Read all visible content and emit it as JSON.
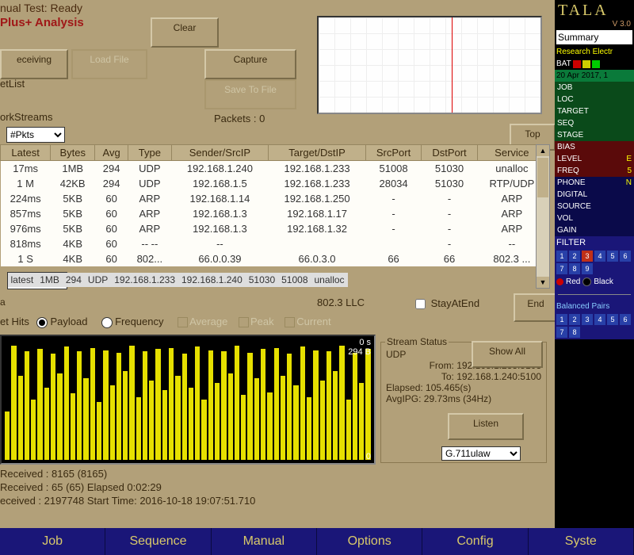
{
  "header": {
    "test_status": "nual Test: Ready",
    "analysis": "Plus+ Analysis"
  },
  "buttons": {
    "clear": "Clear",
    "receiving": "eceiving",
    "load": "Load File",
    "capture": "Capture",
    "save": "Save To File",
    "top": "Top",
    "end": "End",
    "showall": "Show All",
    "listen": "Listen"
  },
  "labels": {
    "etlist": "etList",
    "workstreams": "orkStreams",
    "packets": "Packets : 0",
    "llc": "802.3 LLC",
    "stayatend": "StayAtEnd",
    "ethits": "et Hits",
    "payload": "Payload",
    "frequency": "Frequency",
    "average": "Average",
    "peak": "Peak",
    "current": "Current"
  },
  "dropdown": {
    "pkts": "#Pkts",
    "codec": "G.711ulaw"
  },
  "table": {
    "cols": [
      "Latest",
      "Bytes",
      "Avg",
      "Type",
      "Sender/SrcIP",
      "Target/DstIP",
      "SrcPort",
      "DstPort",
      "Service"
    ],
    "rows": [
      [
        "latest",
        "1MB",
        "294",
        "UDP",
        "192.168.1.233",
        "192.168.1.240",
        "51030",
        "51008",
        "unalloc"
      ],
      [
        "17ms",
        "1MB",
        "294",
        "UDP",
        "192.168.1.240",
        "192.168.1.233",
        "51008",
        "51030",
        "unalloc"
      ],
      [
        "1 M",
        "42KB",
        "294",
        "UDP",
        "192.168.1.5",
        "192.168.1.233",
        "28034",
        "51030",
        "RTP/UDP"
      ],
      [
        "224ms",
        "5KB",
        "60",
        "ARP",
        "192.168.1.14",
        "192.168.1.250",
        "-",
        "-",
        "ARP"
      ],
      [
        "857ms",
        "5KB",
        "60",
        "ARP",
        "192.168.1.3",
        "192.168.1.17",
        "-",
        "-",
        "ARP"
      ],
      [
        "976ms",
        "5KB",
        "60",
        "ARP",
        "192.168.1.3",
        "192.168.1.32",
        "-",
        "-",
        "ARP"
      ],
      [
        "818ms",
        "4KB",
        "60",
        "-- --",
        "--",
        "",
        "",
        "-",
        "--"
      ],
      [
        "1 S",
        "4KB",
        "60",
        "802...",
        "66.0.0.39",
        "66.0.3.0",
        "66",
        "66",
        "802.3 ..."
      ]
    ]
  },
  "barchart": {
    "top_label": "0 s",
    "y_top": "294 B",
    "y_bot": "0",
    "heights": [
      40,
      95,
      70,
      90,
      50,
      92,
      60,
      88,
      72,
      94,
      55,
      90,
      68,
      93,
      48,
      91,
      62,
      89,
      74,
      95,
      52,
      90,
      66,
      92,
      58,
      93,
      70,
      88,
      60,
      94,
      50,
      91,
      64,
      90,
      72,
      95,
      54,
      89,
      68,
      92,
      56,
      93,
      70,
      88,
      62,
      94,
      52,
      91,
      66,
      90,
      74,
      95,
      50,
      89,
      64,
      92
    ]
  },
  "stream": {
    "title": "Stream Status",
    "proto": "UDP",
    "from": "From: 192.168.1.233:5103",
    "to": "To: 192.168.1.240:5100",
    "elapsed": "Elapsed: 105.465(s)",
    "avgipg": "AvgIPG: 29.73ms (34Hz)"
  },
  "stats": {
    "l1": "Received  : 8165 (8165)",
    "l2": " Received  : 65 (65)         Elapsed         0:02:29",
    "l3": "eceived  : 2197748            Start Time:     2016-10-18 19:07:51.710"
  },
  "botnav": [
    "Job",
    "Sequence",
    "Manual",
    "Options",
    "Config",
    "Syste"
  ],
  "right": {
    "logo": "TALA",
    "ver": "V 3.0",
    "summary": "Summary",
    "research": "Research Electr",
    "bat": "BAT",
    "bat_colors": [
      "#c00",
      "#cc0",
      "#0c0"
    ],
    "date": "20 Apr 2017, 1",
    "green": [
      [
        "JOB",
        ""
      ],
      [
        "LOC",
        ""
      ],
      [
        "TARGET",
        ""
      ],
      [
        "SEQ",
        ""
      ],
      [
        "STAGE",
        ""
      ]
    ],
    "red": [
      [
        "BIAS",
        ""
      ],
      [
        "LEVEL",
        "E"
      ],
      [
        "FREQ",
        "5"
      ]
    ],
    "blue": [
      [
        "PHONE",
        "N"
      ],
      [
        "DIGITAL",
        ""
      ],
      [
        "SOURCE",
        ""
      ],
      [
        "VOL",
        ""
      ],
      [
        "GAIN",
        ""
      ]
    ],
    "filter": "FILTER",
    "nums": [
      "1",
      "2",
      "3",
      "4",
      "5",
      "6",
      "7",
      "8",
      "9"
    ],
    "hot": 2,
    "red_lbl": "Red",
    "black_lbl": "Black",
    "bp": "Balanced Pairs",
    "bpn": [
      "1",
      "2",
      "3",
      "4",
      "5",
      "6",
      "7",
      "8"
    ]
  }
}
